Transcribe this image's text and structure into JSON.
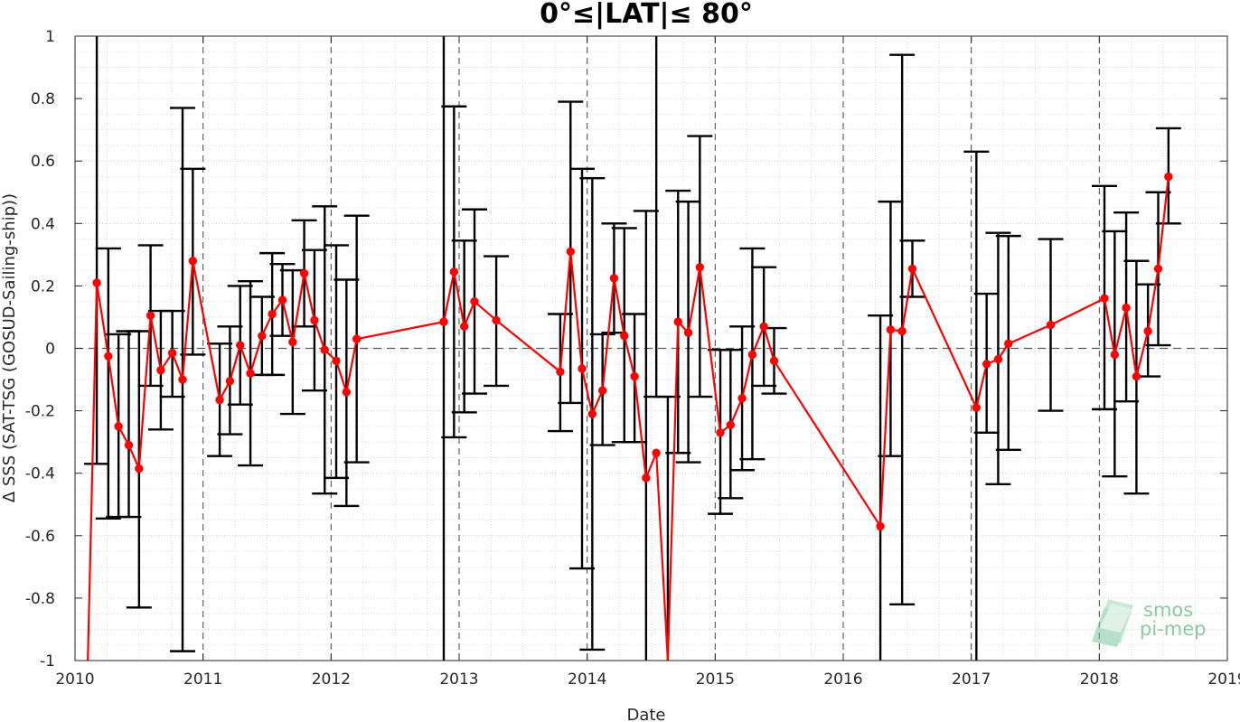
{
  "chart_data": {
    "type": "line",
    "title": "0°≤|LAT|≤ 80°",
    "xlabel": "Date",
    "ylabel": "Δ SSS (SAT-TSG (GOSUD-Sailing-ship))",
    "xlim": [
      2010,
      2019
    ],
    "ylim": [
      -1,
      1
    ],
    "x_ticks": [
      "2010",
      "2011",
      "2012",
      "2013",
      "2014",
      "2015",
      "2016",
      "2017",
      "2018",
      "2019"
    ],
    "y_ticks": [
      "1",
      "0.8",
      "0.6",
      "0.4",
      "0.2",
      "0",
      "-0.2",
      "-0.4",
      "-0.6",
      "-0.8",
      "-1"
    ],
    "grid": "minor dotted + yearly dashed verticals",
    "zero_line": "dashed",
    "series": [
      {
        "color": "#ff0000",
        "marker": "circle",
        "x": [
          2010.1,
          2010.17,
          2010.26,
          2010.34,
          2010.42,
          2010.5,
          2010.59,
          2010.67,
          2010.76,
          2010.84,
          2010.92,
          2011.13,
          2011.21,
          2011.29,
          2011.37,
          2011.46,
          2011.54,
          2011.62,
          2011.7,
          2011.79,
          2011.87,
          2011.95,
          2012.04,
          2012.12,
          2012.2,
          2012.88,
          2012.96,
          2013.04,
          2013.12,
          2013.29,
          2013.79,
          2013.87,
          2013.96,
          2014.04,
          2014.12,
          2014.21,
          2014.29,
          2014.37,
          2014.46,
          2014.54,
          2014.63,
          2014.71,
          2014.79,
          2014.88,
          2015.04,
          2015.12,
          2015.21,
          2015.29,
          2015.38,
          2015.46,
          2016.29,
          2016.37,
          2016.46,
          2016.54,
          2017.04,
          2017.12,
          2017.21,
          2017.29,
          2017.62,
          2018.04,
          2018.12,
          2018.21,
          2018.29,
          2018.38,
          2018.46,
          2018.54
        ],
        "y": [
          -1.05,
          0.21,
          -0.025,
          -0.25,
          -0.31,
          -0.385,
          0.105,
          -0.07,
          -0.015,
          -0.1,
          0.28,
          -0.165,
          -0.105,
          0.01,
          -0.08,
          0.04,
          0.11,
          0.155,
          0.02,
          0.24,
          0.09,
          -0.005,
          -0.04,
          -0.14,
          0.03,
          0.085,
          0.245,
          0.07,
          0.15,
          0.09,
          -0.075,
          0.31,
          -0.065,
          -0.21,
          -0.135,
          0.225,
          0.04,
          -0.09,
          -0.415,
          -0.335,
          -1.05,
          0.085,
          0.05,
          0.26,
          -0.27,
          -0.245,
          -0.16,
          -0.02,
          0.07,
          -0.04,
          -0.57,
          0.06,
          0.055,
          0.255,
          -0.19,
          -0.05,
          -0.035,
          0.015,
          0.075,
          0.16,
          -0.02,
          0.13,
          -0.09,
          0.055,
          0.255,
          0.55
        ],
        "err_low": [
          null,
          -0.37,
          -0.545,
          -0.54,
          -0.54,
          -0.83,
          -0.12,
          -0.26,
          -0.155,
          -0.97,
          -0.02,
          -0.345,
          -0.275,
          -0.18,
          -0.375,
          -0.085,
          -0.085,
          0.04,
          -0.21,
          0.07,
          -0.135,
          -0.465,
          -0.415,
          -0.505,
          -0.365,
          -1.1,
          -0.285,
          -0.205,
          -0.145,
          -0.12,
          -0.265,
          -0.175,
          -0.705,
          -0.965,
          -0.31,
          0.05,
          -0.3,
          -0.3,
          -1.1,
          -0.155,
          -1.1,
          -0.335,
          -0.365,
          -0.155,
          -0.53,
          -0.48,
          -0.39,
          -0.355,
          -0.12,
          -0.145,
          -1.1,
          -0.345,
          -0.82,
          0.165,
          -1.1,
          -0.27,
          -0.435,
          -0.325,
          -0.2,
          -0.195,
          -0.41,
          -0.17,
          -0.465,
          -0.09,
          0.01,
          0.4
        ],
        "err_high": [
          null,
          1.1,
          0.32,
          0.045,
          0.055,
          0.055,
          0.33,
          0.12,
          0.12,
          0.77,
          0.575,
          0.015,
          0.07,
          0.2,
          0.215,
          0.165,
          0.305,
          0.27,
          0.25,
          0.41,
          0.315,
          0.455,
          0.33,
          0.22,
          0.425,
          1.1,
          0.775,
          0.345,
          0.445,
          0.295,
          0.11,
          0.79,
          0.575,
          0.545,
          0.045,
          0.4,
          0.385,
          0.11,
          0.44,
          1.1,
          -0.155,
          0.505,
          0.47,
          0.68,
          -0.005,
          -0.005,
          0.07,
          0.32,
          0.26,
          0.065,
          0.105,
          0.47,
          0.94,
          0.345,
          0.63,
          0.175,
          0.37,
          0.36,
          0.35,
          0.52,
          0.375,
          0.435,
          0.28,
          0.205,
          0.5,
          0.705
        ]
      }
    ]
  },
  "logo": {
    "line1": "smos",
    "line2": "pi-mep"
  }
}
